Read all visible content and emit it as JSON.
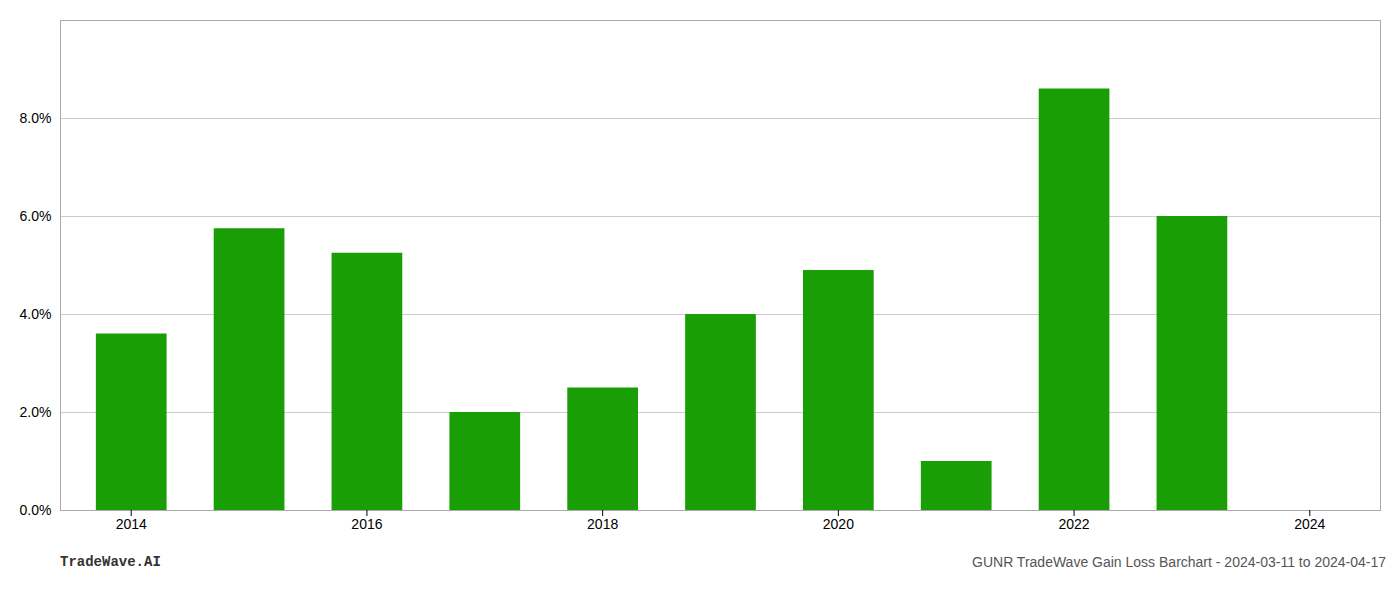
{
  "chart_data": {
    "type": "bar",
    "x": [
      2014,
      2015,
      2016,
      2017,
      2018,
      2019,
      2020,
      2021,
      2022,
      2023
    ],
    "values": [
      0.036,
      0.0575,
      0.0525,
      0.02,
      0.025,
      0.04,
      0.049,
      0.01,
      0.086,
      0.06
    ],
    "color": "#1a9e06",
    "xlim": [
      2013.4,
      2024.6
    ],
    "xticks": [
      2014,
      2016,
      2018,
      2020,
      2022,
      2024
    ],
    "ylim": [
      0,
      0.1
    ],
    "yticks": [
      {
        "value": 0.0,
        "label": "0.0%"
      },
      {
        "value": 0.02,
        "label": "2.0%"
      },
      {
        "value": 0.04,
        "label": "4.0%"
      },
      {
        "value": 0.06,
        "label": "6.0%"
      },
      {
        "value": 0.08,
        "label": "8.0%"
      }
    ],
    "grid": true,
    "annotations": [
      "TradeWave.AI",
      "GUNR TradeWave Gain Loss Barchart - 2024-03-11 to 2024-04-17"
    ]
  }
}
